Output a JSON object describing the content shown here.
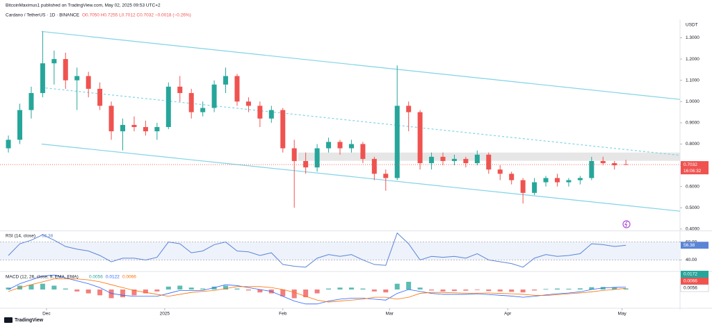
{
  "header": {
    "publisher": "BitcoinMaximus1 published on TradingView.com, May 02, 2025 09:53 UTC+2",
    "symbol": "Cardano / TetherUS · 1D · BINANCE",
    "ohlc": "O0.7050 H0.7255 L0.7012 C0.7032 −0.0018 (−0.26%)"
  },
  "footer": {
    "brand": "TradingView"
  },
  "chart_data": [
    {
      "type": "candlestick",
      "y_axis_label": "USDT",
      "x": [
        -10,
        -7,
        -4,
        -1,
        2,
        5,
        8,
        11,
        14,
        17,
        20,
        23,
        26,
        29,
        32,
        35,
        38,
        41,
        44,
        47,
        50,
        53,
        56,
        59,
        62,
        65,
        68,
        71,
        74,
        77,
        80,
        83,
        86,
        89,
        92,
        95,
        98,
        101,
        104,
        107,
        110,
        113,
        116,
        119,
        122,
        125,
        128,
        131,
        134,
        137,
        140,
        143,
        146,
        149,
        152
      ],
      "open": [
        0.78,
        0.82,
        0.96,
        1.04,
        1.18,
        1.2,
        1.1,
        1.12,
        1.06,
        0.98,
        0.86,
        0.89,
        0.88,
        0.86,
        0.88,
        1.07,
        1.04,
        0.95,
        0.97,
        1.08,
        1.12,
        1.0,
        0.98,
        0.92,
        0.96,
        0.78,
        0.72,
        0.69,
        0.78,
        0.81,
        0.78,
        0.8,
        0.73,
        0.66,
        0.64,
        0.98,
        0.95,
        0.71,
        0.74,
        0.72,
        0.73,
        0.71,
        0.75,
        0.68,
        0.66,
        0.63,
        0.57,
        0.62,
        0.64,
        0.62,
        0.63,
        0.64,
        0.72,
        0.71,
        0.705
      ],
      "high": [
        0.84,
        0.99,
        1.07,
        1.33,
        1.24,
        1.23,
        1.16,
        1.14,
        1.09,
        1.0,
        0.92,
        0.93,
        0.91,
        0.9,
        1.09,
        1.12,
        1.06,
        1.0,
        1.1,
        1.16,
        1.13,
        1.02,
        1.0,
        0.98,
        0.97,
        0.82,
        0.76,
        0.8,
        0.83,
        0.82,
        0.82,
        0.81,
        0.74,
        0.68,
        1.17,
        1.0,
        0.96,
        0.76,
        0.76,
        0.75,
        0.74,
        0.77,
        0.76,
        0.7,
        0.67,
        0.64,
        0.64,
        0.65,
        0.66,
        0.64,
        0.65,
        0.74,
        0.74,
        0.72,
        0.7255
      ],
      "low": [
        0.76,
        0.8,
        0.92,
        1.02,
        1.08,
        1.06,
        0.96,
        1.02,
        0.96,
        0.82,
        0.77,
        0.86,
        0.84,
        0.82,
        0.87,
        1.0,
        0.92,
        0.93,
        0.95,
        1.04,
        0.98,
        0.95,
        0.88,
        0.9,
        0.76,
        0.5,
        0.66,
        0.67,
        0.76,
        0.75,
        0.76,
        0.71,
        0.63,
        0.58,
        0.63,
        0.86,
        0.68,
        0.68,
        0.7,
        0.7,
        0.69,
        0.7,
        0.66,
        0.63,
        0.61,
        0.52,
        0.56,
        0.6,
        0.6,
        0.6,
        0.61,
        0.63,
        0.7,
        0.68,
        0.7012
      ],
      "close": [
        0.82,
        0.96,
        1.04,
        1.18,
        1.2,
        1.1,
        1.12,
        1.06,
        0.98,
        0.86,
        0.89,
        0.88,
        0.86,
        0.88,
        1.07,
        1.04,
        0.95,
        0.97,
        1.08,
        1.12,
        1.0,
        0.98,
        0.92,
        0.96,
        0.78,
        0.72,
        0.69,
        0.78,
        0.81,
        0.78,
        0.8,
        0.73,
        0.66,
        0.64,
        0.98,
        0.95,
        0.71,
        0.74,
        0.72,
        0.73,
        0.71,
        0.75,
        0.68,
        0.66,
        0.63,
        0.57,
        0.62,
        0.64,
        0.62,
        0.63,
        0.64,
        0.72,
        0.71,
        0.7,
        0.7032
      ],
      "up_color": "#26a69a",
      "down_color": "#ef5350",
      "xlim": [
        -12.2,
        166.2
      ],
      "xticks": [
        {
          "value": 0,
          "label": "Dec"
        },
        {
          "value": 31,
          "label": "2025"
        },
        {
          "value": 62,
          "label": "Feb"
        },
        {
          "value": 90,
          "label": "Mar"
        },
        {
          "value": 121,
          "label": "Apr"
        },
        {
          "value": 151,
          "label": "May"
        }
      ],
      "ylim": [
        0.393,
        1.38
      ],
      "yticks": [
        {
          "value": 0.4,
          "label": "0.4000"
        },
        {
          "value": 0.5,
          "label": "0.5000"
        },
        {
          "value": 0.6,
          "label": "0.6000"
        },
        {
          "value": 0.7,
          "label": "0.7000"
        },
        {
          "value": 0.8,
          "label": "0.8000"
        },
        {
          "value": 0.9,
          "label": "0.9000"
        },
        {
          "value": 1.0,
          "label": "1.0000"
        },
        {
          "value": 1.1,
          "label": "1.1000"
        },
        {
          "value": 1.2,
          "label": "1.2000"
        },
        {
          "value": 1.3,
          "label": "1.3000"
        }
      ],
      "grid": false,
      "last_price": 0.7032,
      "countdown": "16:06:32",
      "trendlines": [
        {
          "x": [
            -1.3,
            166.2
          ],
          "y": [
            1.33,
            1.01
          ],
          "style": "solid",
          "color": "#7fd3e6"
        },
        {
          "x": [
            -1.3,
            166.2
          ],
          "y": [
            1.066,
            0.747
          ],
          "style": "dashed",
          "color": "#7fd3e6"
        },
        {
          "x": [
            -1.3,
            166.2
          ],
          "y": [
            0.8,
            0.484
          ],
          "style": "solid",
          "color": "#7fd3e6"
        }
      ],
      "zone": {
        "x": [
          66,
          166.2
        ],
        "y": [
          0.721,
          0.76
        ],
        "color": "#e0e0e0"
      }
    },
    {
      "type": "line",
      "title": "RSI (14, close)",
      "x": [
        -10,
        -7,
        -4,
        -1,
        2,
        5,
        8,
        11,
        14,
        17,
        20,
        23,
        26,
        29,
        32,
        35,
        38,
        41,
        44,
        47,
        50,
        53,
        56,
        59,
        62,
        65,
        68,
        71,
        74,
        77,
        80,
        83,
        86,
        89,
        92,
        95,
        98,
        101,
        104,
        107,
        110,
        113,
        116,
        119,
        122,
        125,
        128,
        131,
        134,
        137,
        140,
        143,
        146,
        149,
        152
      ],
      "values": [
        45,
        58,
        62,
        68,
        62,
        55,
        52,
        50,
        45,
        38,
        42,
        42,
        40,
        43,
        60,
        58,
        48,
        50,
        57,
        60,
        50,
        49,
        45,
        48,
        35,
        33,
        32,
        42,
        46,
        44,
        46,
        40,
        35,
        34,
        70,
        58,
        40,
        44,
        43,
        44,
        42,
        47,
        40,
        38,
        36,
        32,
        42,
        46,
        44,
        45,
        47,
        58,
        57,
        55,
        56.38
      ],
      "color": "#5b84d6",
      "ylim": [
        28,
        72
      ],
      "yticks": [
        {
          "value": 40,
          "label": "40.00"
        },
        {
          "value": 60,
          "label": "60.00"
        }
      ],
      "band_color": "#eef2fb"
    },
    {
      "type": "macd",
      "title": "MACD (12, 26, close, 9, EMA, EMA)",
      "x": [
        -10,
        -7,
        -4,
        -1,
        2,
        5,
        8,
        11,
        14,
        17,
        20,
        23,
        26,
        29,
        32,
        35,
        38,
        41,
        44,
        47,
        50,
        53,
        56,
        59,
        62,
        65,
        68,
        71,
        74,
        77,
        80,
        83,
        86,
        89,
        92,
        95,
        98,
        101,
        104,
        107,
        110,
        113,
        116,
        119,
        122,
        125,
        128,
        131,
        134,
        137,
        140,
        143,
        146,
        149,
        152
      ],
      "histogram": [
        0.01,
        0.02,
        0.025,
        0.03,
        0.02,
        0.005,
        -0.01,
        -0.02,
        -0.03,
        -0.045,
        -0.04,
        -0.03,
        -0.02,
        -0.01,
        0.015,
        0.02,
        0.01,
        0.005,
        0.015,
        0.02,
        0.005,
        -0.005,
        -0.015,
        -0.02,
        -0.035,
        -0.045,
        -0.04,
        -0.02,
        0.005,
        0.01,
        0.01,
        0.005,
        -0.01,
        -0.015,
        0.03,
        0.04,
        0.01,
        -0.005,
        -0.01,
        -0.008,
        -0.006,
        -0.003,
        -0.008,
        -0.01,
        -0.012,
        -0.015,
        -0.005,
        0.003,
        0.005,
        0.004,
        0.006,
        0.012,
        0.013,
        0.011,
        0.0056
      ],
      "macd": [
        0,
        0.03,
        0.05,
        0.07,
        0.075,
        0.06,
        0.045,
        0.03,
        0.01,
        -0.02,
        -0.03,
        -0.035,
        -0.035,
        -0.035,
        -0.02,
        -0.005,
        -0.005,
        -0.005,
        0.01,
        0.025,
        0.02,
        0.01,
        0,
        -0.01,
        -0.035,
        -0.06,
        -0.075,
        -0.075,
        -0.06,
        -0.05,
        -0.045,
        -0.045,
        -0.05,
        -0.055,
        -0.02,
        0,
        -0.01,
        -0.02,
        -0.025,
        -0.025,
        -0.025,
        -0.022,
        -0.026,
        -0.03,
        -0.034,
        -0.04,
        -0.035,
        -0.028,
        -0.022,
        -0.018,
        -0.012,
        0,
        0.008,
        0.011,
        0.0122
      ],
      "signal": [
        -0.01,
        0.01,
        0.025,
        0.04,
        0.055,
        0.055,
        0.055,
        0.05,
        0.04,
        0.025,
        0.01,
        -0.005,
        -0.015,
        -0.025,
        -0.035,
        -0.025,
        -0.015,
        -0.01,
        -0.005,
        0.005,
        0.015,
        0.015,
        0.015,
        0.01,
        0,
        -0.015,
        -0.035,
        -0.055,
        -0.065,
        -0.06,
        -0.055,
        -0.05,
        -0.04,
        -0.04,
        -0.05,
        -0.04,
        -0.02,
        -0.015,
        -0.015,
        -0.017,
        -0.019,
        -0.019,
        -0.018,
        -0.02,
        -0.022,
        -0.025,
        -0.03,
        -0.031,
        -0.027,
        -0.022,
        -0.018,
        -0.012,
        -0.005,
        0,
        0.0066
      ],
      "pos_color": "#26a69a",
      "neg_color": "#ef5350",
      "macd_color": "#2962ff",
      "signal_color": "#ff6d00",
      "ylim": [
        -0.09,
        0.09
      ],
      "axis_badge": 0.0172
    }
  ]
}
